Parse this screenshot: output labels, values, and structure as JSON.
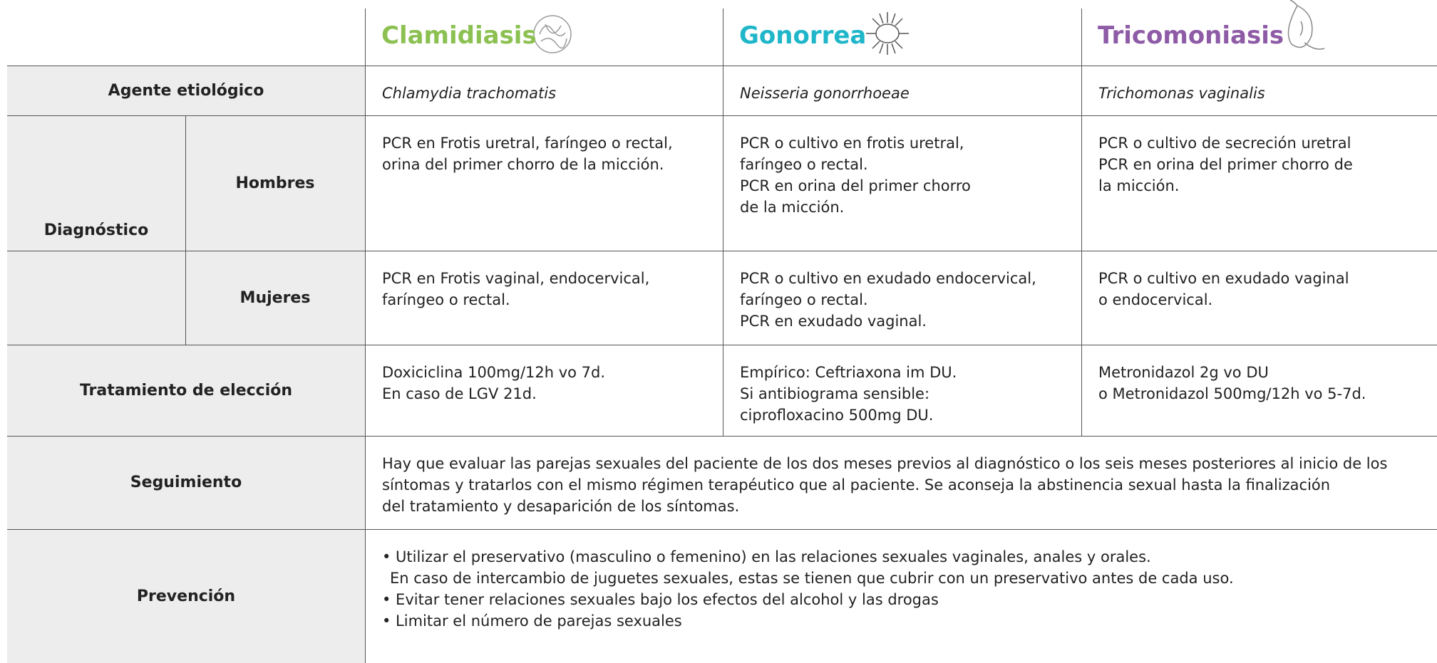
{
  "columns": [
    "Clamidiasis",
    "Gonorrea",
    "Tricomoniasis"
  ],
  "rows": [
    {
      "label": "Agente etiológico",
      "cells": [
        [
          "Chlamydia trachomatis"
        ],
        [
          "Neisseria gonorrhoeae"
        ],
        [
          "Trichomonas vaginalis"
        ]
      ]
    },
    {
      "label": "Diagnóstico",
      "subrows": [
        {
          "label": "Hombres",
          "cells": [
            [
              "PCR en Frotis uretral, faríngeo o rectal,",
              "orina del primer chorro de la micción."
            ],
            [
              "PCR o cultivo en frotis uretral,",
              "faríngeo o rectal.",
              "PCR en orina del primer chorro",
              "de la micción."
            ],
            [
              "PCR o cultivo de secreción uretral",
              "PCR en orina del primer chorro de",
              "la micción."
            ]
          ]
        },
        {
          "label": "Mujeres",
          "cells": [
            [
              "PCR en Frotis vaginal, endocervical,",
              "faríngeo o rectal."
            ],
            [
              "PCR o cultivo en exudado endocervical,",
              "faríngeo o rectal.",
              "PCR en exudado vaginal."
            ],
            [
              "PCR o cultivo en exudado vaginal",
              "o endocervical."
            ]
          ]
        }
      ]
    },
    {
      "label": "Tratamiento de elección",
      "cells": [
        [
          "Doxiciclina 100mg/12h vo 7d.",
          "En caso de LGV 21d."
        ],
        [
          "Empírico: Ceftriaxona im DU.",
          "Si antibiograma sensible:",
          "ciprofloxacino 500mg DU."
        ],
        [
          "Metronidazol 2g vo DU",
          "o Metronidazol 500mg/12h vo 5-7d."
        ]
      ]
    },
    {
      "label": "Seguimiento",
      "text": [
        "Hay que evaluar las parejas sexuales del paciente de los dos meses previos al diagnóstico o los seis meses posteriores al inicio de los",
        "síntomas y tratarlos con el mismo régimen terapéutico que al paciente. Se aconseja la abstinencia sexual hasta la finalización",
        "del tratamiento y desaparición de los síntomas."
      ]
    },
    {
      "label": "Prevención",
      "text": [
        "• Utilizar el preservativo (masculino o femenino) en las relaciones sexuales vaginales, anales y orales.",
        "En caso de intercambio de juguetes sexuales, estas se tienen que cubrir con un preservativo antes de cada uso.",
        "• Evitar tener relaciones sexuales bajo los efectos del alcohol y las drogas",
        "• Limitar el número de parejas sexuales"
      ]
    }
  ]
}
